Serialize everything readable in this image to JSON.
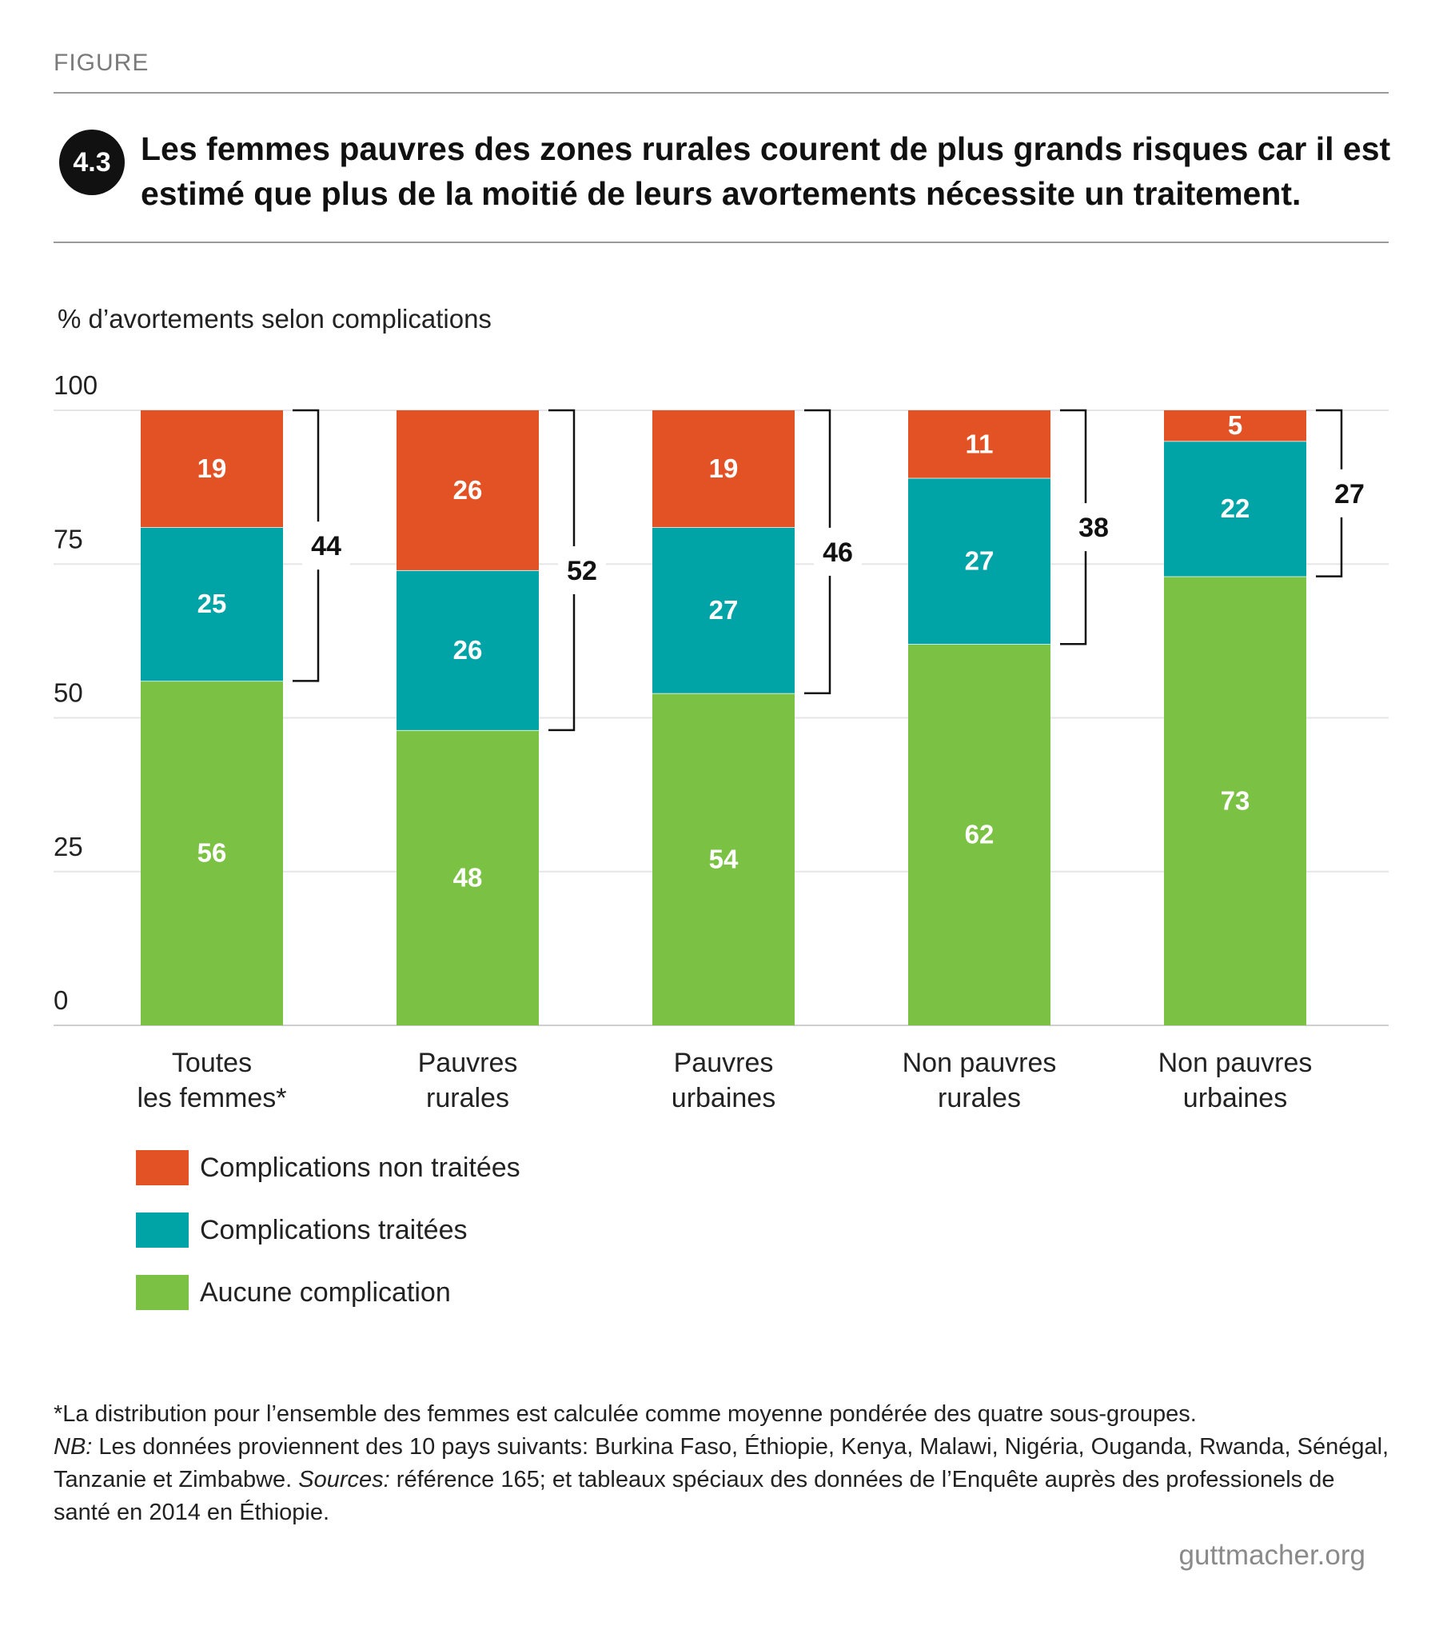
{
  "header": {
    "figure_label": "FIGURE",
    "badge": "4.3",
    "title_lines": [
      "Les femmes pauvres des zones rurales courent de plus grands risques car il est",
      "estimé que plus de la moitié de leurs avortements nécessite un traitement."
    ]
  },
  "chart_data": {
    "type": "bar",
    "stacked": true,
    "title": "Les femmes pauvres des zones rurales courent de plus grands risques car il est estimé que plus de la moitié de leurs avortements nécessite un traitement.",
    "ylabel": "% d’avortements selon complications",
    "ylim": [
      0,
      100
    ],
    "yticks": [
      0,
      25,
      50,
      75,
      100
    ],
    "grid": true,
    "categories": [
      [
        "Toutes",
        "les femmes*"
      ],
      [
        "Pauvres",
        "rurales"
      ],
      [
        "Pauvres",
        "urbaines"
      ],
      [
        "Non pauvres",
        "rurales"
      ],
      [
        "Non pauvres",
        "urbaines"
      ]
    ],
    "series": [
      {
        "name": "Aucune complication",
        "color": "#7bc143",
        "values": [
          56,
          48,
          54,
          62,
          73
        ]
      },
      {
        "name": "Complications traitées",
        "color": "#00a3a6",
        "values": [
          25,
          26,
          27,
          27,
          22
        ]
      },
      {
        "name": "Complications non traitées",
        "color": "#e35224",
        "values": [
          19,
          26,
          19,
          11,
          5
        ]
      }
    ],
    "bracket_totals": [
      44,
      52,
      46,
      38,
      27
    ],
    "legend_placement": "bottom-left"
  },
  "legend": [
    {
      "label": "Complications non traitées",
      "color": "#e35224"
    },
    {
      "label": "Complications traitées",
      "color": "#00a3a6"
    },
    {
      "label": "Aucune complication",
      "color": "#7bc143"
    }
  ],
  "notes": {
    "footnote": "*La distribution pour l’ensemble des femmes est calculée comme moyenne pondérée des quatre sous-groupes.",
    "nb_label": "NB:",
    "nb_text": " Les données proviennent des 10 pays suivants: Burkina Faso, Éthiopie, Kenya, Malawi, Nigéria, Ouganda, Rwanda, Sénégal, Tanzanie et Zimbabwe. ",
    "sources_label": "Sources:",
    "sources_text": " référence 165; et tableaux spéciaux des données de l’Enquête auprès des professionels de santé en 2014 en Éthiopie."
  },
  "source": "guttmacher.org"
}
